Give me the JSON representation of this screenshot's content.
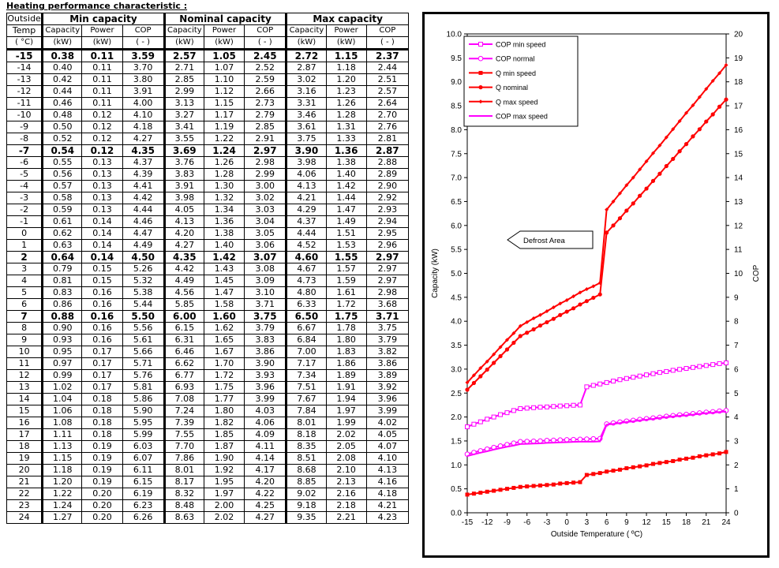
{
  "table": {
    "title": "Heating performance  characteristic  :",
    "header_outside": "Outside",
    "header_temp": "Temp",
    "unit_temp": "( °C)",
    "groups": [
      "Min capacity",
      "Nominal capacity",
      "Max capacity"
    ],
    "sub_headers": [
      "Capacity",
      "Power",
      "COP"
    ],
    "units": [
      "(kW)",
      "(kW)",
      "( - )"
    ],
    "rows": [
      {
        "t": "-15",
        "min": [
          "0.38",
          "0.11",
          "3.59"
        ],
        "nom": [
          "2.57",
          "1.05",
          "2.45"
        ],
        "max": [
          "2.72",
          "1.15",
          "2.37"
        ],
        "bold": true
      },
      {
        "t": "-14",
        "min": [
          "0.40",
          "0.11",
          "3.70"
        ],
        "nom": [
          "2.71",
          "1.07",
          "2.52"
        ],
        "max": [
          "2.87",
          "1.18",
          "2.44"
        ]
      },
      {
        "t": "-13",
        "min": [
          "0.42",
          "0.11",
          "3.80"
        ],
        "nom": [
          "2.85",
          "1.10",
          "2.59"
        ],
        "max": [
          "3.02",
          "1.20",
          "2.51"
        ]
      },
      {
        "t": "-12",
        "min": [
          "0.44",
          "0.11",
          "3.91"
        ],
        "nom": [
          "2.99",
          "1.12",
          "2.66"
        ],
        "max": [
          "3.16",
          "1.23",
          "2.57"
        ]
      },
      {
        "t": "-11",
        "min": [
          "0.46",
          "0.11",
          "4.00"
        ],
        "nom": [
          "3.13",
          "1.15",
          "2.73"
        ],
        "max": [
          "3.31",
          "1.26",
          "2.64"
        ]
      },
      {
        "t": "-10",
        "min": [
          "0.48",
          "0.12",
          "4.10"
        ],
        "nom": [
          "3.27",
          "1.17",
          "2.79"
        ],
        "max": [
          "3.46",
          "1.28",
          "2.70"
        ]
      },
      {
        "t": "-9",
        "min": [
          "0.50",
          "0.12",
          "4.18"
        ],
        "nom": [
          "3.41",
          "1.19",
          "2.85"
        ],
        "max": [
          "3.61",
          "1.31",
          "2.76"
        ]
      },
      {
        "t": "-8",
        "min": [
          "0.52",
          "0.12",
          "4.27"
        ],
        "nom": [
          "3.55",
          "1.22",
          "2.91"
        ],
        "max": [
          "3.75",
          "1.33",
          "2.81"
        ]
      },
      {
        "t": "-7",
        "min": [
          "0.54",
          "0.12",
          "4.35"
        ],
        "nom": [
          "3.69",
          "1.24",
          "2.97"
        ],
        "max": [
          "3.90",
          "1.36",
          "2.87"
        ],
        "bold": true
      },
      {
        "t": "-6",
        "min": [
          "0.55",
          "0.13",
          "4.37"
        ],
        "nom": [
          "3.76",
          "1.26",
          "2.98"
        ],
        "max": [
          "3.98",
          "1.38",
          "2.88"
        ]
      },
      {
        "t": "-5",
        "min": [
          "0.56",
          "0.13",
          "4.39"
        ],
        "nom": [
          "3.83",
          "1.28",
          "2.99"
        ],
        "max": [
          "4.06",
          "1.40",
          "2.89"
        ]
      },
      {
        "t": "-4",
        "min": [
          "0.57",
          "0.13",
          "4.41"
        ],
        "nom": [
          "3.91",
          "1.30",
          "3.00"
        ],
        "max": [
          "4.13",
          "1.42",
          "2.90"
        ]
      },
      {
        "t": "-3",
        "min": [
          "0.58",
          "0.13",
          "4.42"
        ],
        "nom": [
          "3.98",
          "1.32",
          "3.02"
        ],
        "max": [
          "4.21",
          "1.44",
          "2.92"
        ]
      },
      {
        "t": "-2",
        "min": [
          "0.59",
          "0.13",
          "4.44"
        ],
        "nom": [
          "4.05",
          "1.34",
          "3.03"
        ],
        "max": [
          "4.29",
          "1.47",
          "2.93"
        ]
      },
      {
        "t": "-1",
        "min": [
          "0.61",
          "0.14",
          "4.46"
        ],
        "nom": [
          "4.13",
          "1.36",
          "3.04"
        ],
        "max": [
          "4.37",
          "1.49",
          "2.94"
        ]
      },
      {
        "t": "0",
        "min": [
          "0.62",
          "0.14",
          "4.47"
        ],
        "nom": [
          "4.20",
          "1.38",
          "3.05"
        ],
        "max": [
          "4.44",
          "1.51",
          "2.95"
        ]
      },
      {
        "t": "1",
        "min": [
          "0.63",
          "0.14",
          "4.49"
        ],
        "nom": [
          "4.27",
          "1.40",
          "3.06"
        ],
        "max": [
          "4.52",
          "1.53",
          "2.96"
        ]
      },
      {
        "t": "2",
        "min": [
          "0.64",
          "0.14",
          "4.50"
        ],
        "nom": [
          "4.35",
          "1.42",
          "3.07"
        ],
        "max": [
          "4.60",
          "1.55",
          "2.97"
        ],
        "bold": true
      },
      {
        "t": "3",
        "min": [
          "0.79",
          "0.15",
          "5.26"
        ],
        "nom": [
          "4.42",
          "1.43",
          "3.08"
        ],
        "max": [
          "4.67",
          "1.57",
          "2.97"
        ]
      },
      {
        "t": "4",
        "min": [
          "0.81",
          "0.15",
          "5.32"
        ],
        "nom": [
          "4.49",
          "1.45",
          "3.09"
        ],
        "max": [
          "4.73",
          "1.59",
          "2.97"
        ]
      },
      {
        "t": "5",
        "min": [
          "0.83",
          "0.16",
          "5.38"
        ],
        "nom": [
          "4.56",
          "1.47",
          "3.10"
        ],
        "max": [
          "4.80",
          "1.61",
          "2.98"
        ]
      },
      {
        "t": "6",
        "min": [
          "0.86",
          "0.16",
          "5.44"
        ],
        "nom": [
          "5.85",
          "1.58",
          "3.71"
        ],
        "max": [
          "6.33",
          "1.72",
          "3.68"
        ]
      },
      {
        "t": "7",
        "min": [
          "0.88",
          "0.16",
          "5.50"
        ],
        "nom": [
          "6.00",
          "1.60",
          "3.75"
        ],
        "max": [
          "6.50",
          "1.75",
          "3.71"
        ],
        "bold": true
      },
      {
        "t": "8",
        "min": [
          "0.90",
          "0.16",
          "5.56"
        ],
        "nom": [
          "6.15",
          "1.62",
          "3.79"
        ],
        "max": [
          "6.67",
          "1.78",
          "3.75"
        ]
      },
      {
        "t": "9",
        "min": [
          "0.93",
          "0.16",
          "5.61"
        ],
        "nom": [
          "6.31",
          "1.65",
          "3.83"
        ],
        "max": [
          "6.84",
          "1.80",
          "3.79"
        ]
      },
      {
        "t": "10",
        "min": [
          "0.95",
          "0.17",
          "5.66"
        ],
        "nom": [
          "6.46",
          "1.67",
          "3.86"
        ],
        "max": [
          "7.00",
          "1.83",
          "3.82"
        ]
      },
      {
        "t": "11",
        "min": [
          "0.97",
          "0.17",
          "5.71"
        ],
        "nom": [
          "6.62",
          "1.70",
          "3.90"
        ],
        "max": [
          "7.17",
          "1.86",
          "3.86"
        ]
      },
      {
        "t": "12",
        "min": [
          "0.99",
          "0.17",
          "5.76"
        ],
        "nom": [
          "6.77",
          "1.72",
          "3.93"
        ],
        "max": [
          "7.34",
          "1.89",
          "3.89"
        ]
      },
      {
        "t": "13",
        "min": [
          "1.02",
          "0.17",
          "5.81"
        ],
        "nom": [
          "6.93",
          "1.75",
          "3.96"
        ],
        "max": [
          "7.51",
          "1.91",
          "3.92"
        ]
      },
      {
        "t": "14",
        "min": [
          "1.04",
          "0.18",
          "5.86"
        ],
        "nom": [
          "7.08",
          "1.77",
          "3.99"
        ],
        "max": [
          "7.67",
          "1.94",
          "3.96"
        ]
      },
      {
        "t": "15",
        "min": [
          "1.06",
          "0.18",
          "5.90"
        ],
        "nom": [
          "7.24",
          "1.80",
          "4.03"
        ],
        "max": [
          "7.84",
          "1.97",
          "3.99"
        ]
      },
      {
        "t": "16",
        "min": [
          "1.08",
          "0.18",
          "5.95"
        ],
        "nom": [
          "7.39",
          "1.82",
          "4.06"
        ],
        "max": [
          "8.01",
          "1.99",
          "4.02"
        ]
      },
      {
        "t": "17",
        "min": [
          "1.11",
          "0.18",
          "5.99"
        ],
        "nom": [
          "7.55",
          "1.85",
          "4.09"
        ],
        "max": [
          "8.18",
          "2.02",
          "4.05"
        ]
      },
      {
        "t": "18",
        "min": [
          "1.13",
          "0.19",
          "6.03"
        ],
        "nom": [
          "7.70",
          "1.87",
          "4.11"
        ],
        "max": [
          "8.35",
          "2.05",
          "4.07"
        ]
      },
      {
        "t": "19",
        "min": [
          "1.15",
          "0.19",
          "6.07"
        ],
        "nom": [
          "7.86",
          "1.90",
          "4.14"
        ],
        "max": [
          "8.51",
          "2.08",
          "4.10"
        ]
      },
      {
        "t": "20",
        "min": [
          "1.18",
          "0.19",
          "6.11"
        ],
        "nom": [
          "8.01",
          "1.92",
          "4.17"
        ],
        "max": [
          "8.68",
          "2.10",
          "4.13"
        ]
      },
      {
        "t": "21",
        "min": [
          "1.20",
          "0.19",
          "6.15"
        ],
        "nom": [
          "8.17",
          "1.95",
          "4.20"
        ],
        "max": [
          "8.85",
          "2.13",
          "4.16"
        ]
      },
      {
        "t": "22",
        "min": [
          "1.22",
          "0.20",
          "6.19"
        ],
        "nom": [
          "8.32",
          "1.97",
          "4.22"
        ],
        "max": [
          "9.02",
          "2.16",
          "4.18"
        ]
      },
      {
        "t": "23",
        "min": [
          "1.24",
          "0.20",
          "6.23"
        ],
        "nom": [
          "8.48",
          "2.00",
          "4.25"
        ],
        "max": [
          "9.18",
          "2.18",
          "4.21"
        ]
      },
      {
        "t": "24",
        "min": [
          "1.27",
          "0.20",
          "6.26"
        ],
        "nom": [
          "8.63",
          "2.02",
          "4.27"
        ],
        "max": [
          "9.35",
          "2.21",
          "4.23"
        ]
      }
    ]
  },
  "chart_data": {
    "type": "line",
    "title": "",
    "xlabel": "Outside Temperature ( ºC)",
    "ylabel": "Capacity (kW)",
    "y2label": "COP",
    "xlim": [
      -15,
      24
    ],
    "ylim": [
      0,
      10
    ],
    "y2lim": [
      0,
      20
    ],
    "xticks": [
      "-15",
      "-12",
      "-9",
      "-6",
      "-3",
      "0",
      "3",
      "6",
      "9",
      "12",
      "15",
      "18",
      "21",
      "24"
    ],
    "yticks": [
      "0.0",
      "0.5",
      "1.0",
      "1.5",
      "2.0",
      "2.5",
      "3.0",
      "3.5",
      "4.0",
      "4.5",
      "5.0",
      "5.5",
      "6.0",
      "6.5",
      "7.0",
      "7.5",
      "8.0",
      "8.5",
      "9.0",
      "9.5",
      "10.0"
    ],
    "y2ticks": [
      "0",
      "1",
      "2",
      "3",
      "4",
      "5",
      "6",
      "7",
      "8",
      "9",
      "10",
      "11",
      "12",
      "13",
      "14",
      "15",
      "16",
      "17",
      "18",
      "19",
      "20"
    ],
    "grid": false,
    "legend_position": "top-left",
    "colors": {
      "cop": "#ff00ff",
      "q": "#ff0000"
    },
    "series": [
      {
        "name": "COP min speed",
        "axis": "right",
        "marker": "square-open",
        "color": "#ff00ff"
      },
      {
        "name": "COP normal",
        "axis": "right",
        "marker": "circle-open",
        "color": "#ff00ff"
      },
      {
        "name": "Q min speed",
        "axis": "left",
        "marker": "square",
        "color": "#ff0000"
      },
      {
        "name": "Q nominal",
        "axis": "left",
        "marker": "circle",
        "color": "#ff0000"
      },
      {
        "name": "Q max speed",
        "axis": "left",
        "marker": "diamond",
        "color": "#ff0000"
      },
      {
        "name": "COP max speed",
        "axis": "right",
        "marker": "none",
        "color": "#ff00ff"
      }
    ],
    "plotted_from": {
      "Q min speed": "min.0",
      "Q nominal": "nom.0",
      "Q max speed": "max.0",
      "COP min speed": "min.2",
      "COP normal": "nom.2",
      "COP max speed": "max.2"
    },
    "annotation": {
      "text": "Defrost Area"
    }
  }
}
